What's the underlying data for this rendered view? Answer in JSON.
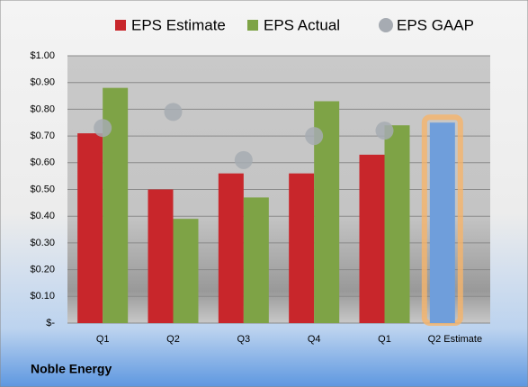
{
  "chart_data": {
    "type": "bar",
    "categories": [
      "Q1",
      "Q2",
      "Q3",
      "Q4",
      "Q1",
      "Q2 Estimate"
    ],
    "series": [
      {
        "name": "EPS Estimate",
        "color": "#c8262b",
        "colors": [
          "#c8262b",
          "#c8262b",
          "#c8262b",
          "#c8262b",
          "#c8262b",
          "#6f9edb"
        ],
        "outlines": [
          null,
          null,
          null,
          null,
          null,
          "#f6b46a"
        ],
        "values": [
          0.71,
          0.5,
          0.56,
          0.56,
          0.63,
          0.75
        ]
      },
      {
        "name": "EPS Actual",
        "color": "#7ea346",
        "values": [
          0.88,
          0.39,
          0.47,
          0.83,
          0.74,
          null
        ]
      },
      {
        "name": "EPS GAAP",
        "color": "#a6abb2",
        "marker": "circle",
        "values": [
          0.73,
          0.79,
          0.61,
          0.7,
          0.72,
          null
        ]
      }
    ],
    "ylim": [
      0,
      1.0
    ],
    "yticks": [
      {
        "value": 0,
        "label": "$-"
      },
      {
        "value": 0.1,
        "label": "$0.10"
      },
      {
        "value": 0.2,
        "label": "$0.20"
      },
      {
        "value": 0.3,
        "label": "$0.30"
      },
      {
        "value": 0.4,
        "label": "$0.40"
      },
      {
        "value": 0.5,
        "label": "$0.50"
      },
      {
        "value": 0.6,
        "label": "$0.60"
      },
      {
        "value": 0.7,
        "label": "$0.70"
      },
      {
        "value": 0.8,
        "label": "$0.80"
      },
      {
        "value": 0.9,
        "label": "$0.90"
      },
      {
        "value": 1.0,
        "label": "$1.00"
      }
    ],
    "grid": true,
    "legend": "top",
    "footer": "Noble Energy"
  }
}
